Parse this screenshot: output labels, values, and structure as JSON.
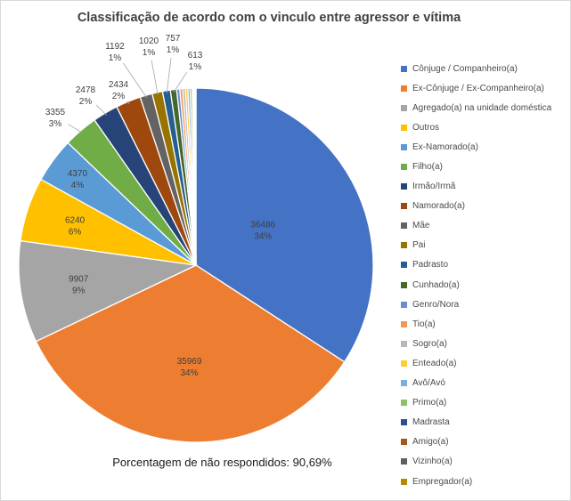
{
  "title": "Classificação de acordo com o vinculo entre agressor e vítima",
  "footnote": "Porcentagem de não respondidos: 90,69%",
  "colors": {
    "background": "#FFFFFF",
    "frame_border": "#D9D9D9",
    "title_text": "#404040",
    "label_text": "#3F3F3F",
    "leader_line": "#A6A6A6"
  },
  "chart_data": {
    "type": "pie",
    "title": "Classificação de acordo com o vinculo entre agressor e vítima",
    "annotation": "Porcentagem de não respondidos: 90,69%",
    "legend_position": "right",
    "slice_start": "top-clockwise",
    "slices": [
      {
        "label": "Cônjuge / Companheiro(a)",
        "value": 36486,
        "value_label": "36486",
        "pct_label": "34%",
        "color": "#4472C4"
      },
      {
        "label": "Ex-Cônjuge / Ex-Companheiro(a)",
        "value": 35969,
        "value_label": "35969",
        "pct_label": "34%",
        "color": "#ED7D31"
      },
      {
        "label": "Agregado(a) na unidade doméstica",
        "value": 9907,
        "value_label": "9907",
        "pct_label": "9%",
        "color": "#A5A5A5"
      },
      {
        "label": "Outros",
        "value": 6240,
        "value_label": "6240",
        "pct_label": "6%",
        "color": "#FFC000"
      },
      {
        "label": "Ex-Namorado(a)",
        "value": 4370,
        "value_label": "4370",
        "pct_label": "4%",
        "color": "#5B9BD5"
      },
      {
        "label": "Filho(a)",
        "value": 3355,
        "value_label": "3355",
        "pct_label": "3%",
        "color": "#70AD47"
      },
      {
        "label": "Irmão/Irmã",
        "value": 2478,
        "value_label": "2478",
        "pct_label": "2%",
        "color": "#264478"
      },
      {
        "label": "Namorado(a)",
        "value": 2434,
        "value_label": "2434",
        "pct_label": "2%",
        "color": "#9E480E"
      },
      {
        "label": "Mãe",
        "value": 1192,
        "value_label": "1192",
        "pct_label": "1%",
        "color": "#636363"
      },
      {
        "label": "Pai",
        "value": 1020,
        "value_label": "1020",
        "pct_label": "1%",
        "color": "#997300"
      },
      {
        "label": "Padrasto",
        "value": 757,
        "value_label": "757",
        "pct_label": "1%",
        "color": "#255E91"
      },
      {
        "label": "Cunhado(a)",
        "value": 613,
        "value_label": "613",
        "pct_label": "1%",
        "color": "#43682B"
      },
      {
        "label": "Genro/Nora",
        "value": 300,
        "estimated": true,
        "color": "#698ED0"
      },
      {
        "label": "Tio(a)",
        "value": 280,
        "estimated": true,
        "color": "#F1975A"
      },
      {
        "label": "Sogro(a)",
        "value": 260,
        "estimated": true,
        "color": "#B7B7B7"
      },
      {
        "label": "Enteado(a)",
        "value": 240,
        "estimated": true,
        "color": "#FFCD33"
      },
      {
        "label": "Avô/Avó",
        "value": 220,
        "estimated": true,
        "color": "#7CAFDD"
      },
      {
        "label": "Primo(a)",
        "value": 200,
        "estimated": true,
        "color": "#8CC168"
      },
      {
        "label": "Madrasta",
        "value": 120,
        "estimated": true,
        "color": "#2F5089"
      },
      {
        "label": "Amigo(a)",
        "value": 100,
        "estimated": true,
        "color": "#A65722"
      },
      {
        "label": "Vizinho(a)",
        "value": 80,
        "estimated": true,
        "color": "#5F5F5F"
      },
      {
        "label": "Empregador(a)",
        "value": 60,
        "estimated": true,
        "color": "#B58A00"
      }
    ]
  }
}
